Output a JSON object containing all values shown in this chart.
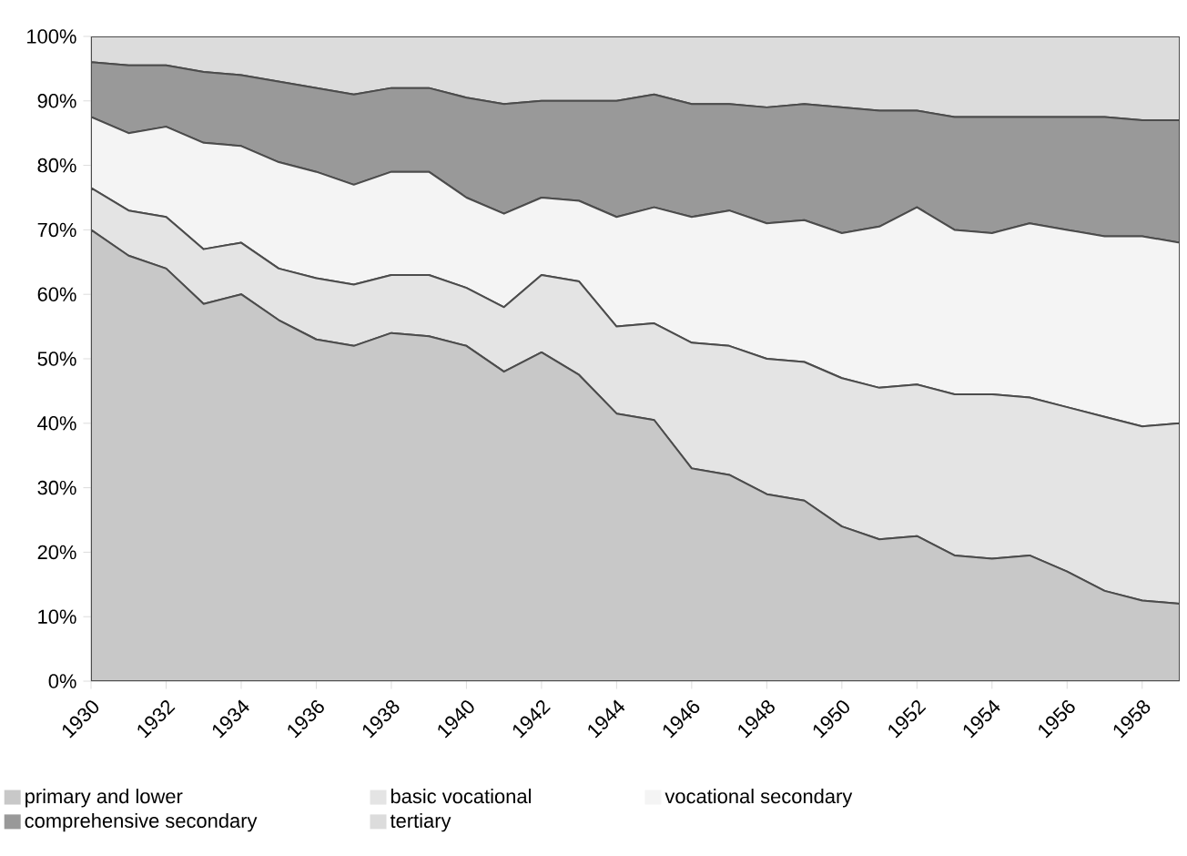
{
  "chart_data": {
    "type": "area",
    "stacked": true,
    "x": [
      1930,
      1931,
      1932,
      1933,
      1934,
      1935,
      1936,
      1937,
      1938,
      1939,
      1940,
      1941,
      1942,
      1943,
      1944,
      1945,
      1946,
      1947,
      1948,
      1949,
      1950,
      1951,
      1952,
      1953,
      1954,
      1955,
      1956,
      1957,
      1958,
      1959
    ],
    "series": [
      {
        "name": "primary and lower",
        "color": "#c8c8c8",
        "values": [
          70,
          66,
          64,
          58.5,
          60,
          56,
          53,
          52,
          54,
          53.5,
          52,
          48,
          51,
          47.5,
          41.5,
          40.5,
          33,
          32,
          29,
          28,
          24,
          22,
          22.5,
          19.5,
          19,
          19.5,
          17,
          14,
          12.5,
          12
        ]
      },
      {
        "name": "basic vocational",
        "color": "#e4e4e4",
        "values": [
          6.5,
          7,
          8,
          8.5,
          8,
          8,
          9.5,
          9.5,
          9,
          9.5,
          9,
          10,
          12,
          14.5,
          13.5,
          15,
          19.5,
          20,
          21,
          21.5,
          23,
          23.5,
          23.5,
          25,
          25.5,
          24.5,
          25.5,
          27,
          27,
          28
        ]
      },
      {
        "name": "vocational secondary",
        "color": "#f4f4f4",
        "values": [
          11,
          12,
          14,
          16.5,
          15,
          16.5,
          16.5,
          15.5,
          16,
          16,
          14,
          14.5,
          12,
          12.5,
          17,
          18,
          19.5,
          21,
          21,
          22,
          22.5,
          25,
          27.5,
          25.5,
          25,
          27,
          27.5,
          28,
          29.5,
          28
        ]
      },
      {
        "name": "comprehensive secondary",
        "color": "#999999",
        "values": [
          8.5,
          10.5,
          9.5,
          11,
          11,
          12.5,
          13,
          14,
          13,
          13,
          15.5,
          17,
          15,
          15.5,
          18,
          17.5,
          17.5,
          16.5,
          18,
          18,
          19.5,
          18,
          15,
          17.5,
          18,
          16.5,
          17.5,
          18.5,
          18,
          19
        ]
      },
      {
        "name": "tertiary",
        "color": "#dcdcdc",
        "values": [
          4,
          4.5,
          4.5,
          5.5,
          6,
          7,
          8,
          9,
          8,
          8,
          9.5,
          10.5,
          10,
          10,
          10,
          9,
          10.5,
          10.5,
          11,
          10.5,
          11,
          11.5,
          11.5,
          12.5,
          12.5,
          12.5,
          12.5,
          12.5,
          13,
          13
        ]
      }
    ],
    "xlim": [
      1930,
      1959
    ],
    "xticks": [
      1930,
      1932,
      1934,
      1936,
      1938,
      1940,
      1942,
      1944,
      1946,
      1948,
      1950,
      1952,
      1954,
      1956,
      1958
    ],
    "ylim": [
      0,
      100
    ],
    "yticks": [
      {
        "value": 0,
        "label": "0%"
      },
      {
        "value": 10,
        "label": "10%"
      },
      {
        "value": 20,
        "label": "20%"
      },
      {
        "value": 30,
        "label": "30%"
      },
      {
        "value": 40,
        "label": "40%"
      },
      {
        "value": 50,
        "label": "50%"
      },
      {
        "value": 60,
        "label": "60%"
      },
      {
        "value": 70,
        "label": "70%"
      },
      {
        "value": 80,
        "label": "80%"
      },
      {
        "value": 90,
        "label": "90%"
      },
      {
        "value": 100,
        "label": "100%"
      }
    ],
    "legend": "bottom"
  }
}
